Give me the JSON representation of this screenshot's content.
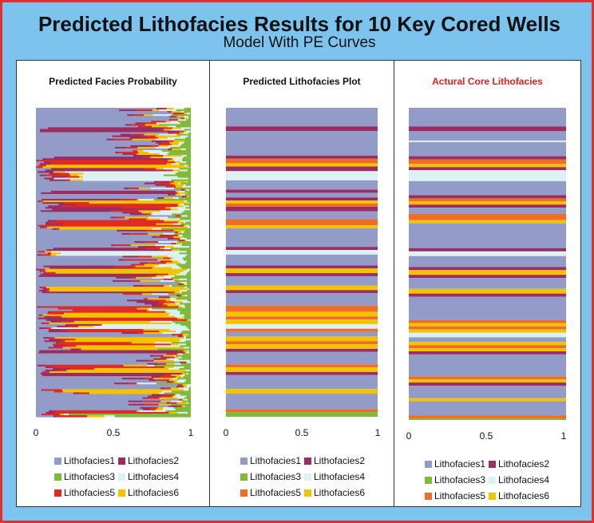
{
  "title": "Predicted Lithofacies Results for 10 Key Cored Wells",
  "subtitle": "Model With PE Curves",
  "colors": {
    "frame_border": "#e03030",
    "background": "#7cc3ee",
    "Lithofacies1": "#939bc8",
    "Lithofacies2": "#9b2d62",
    "Lithofacies3": "#7fbb3b",
    "Lithofacies4": "#dcf1f2",
    "Lithofacies5_panel1": "#e12a24",
    "Lithofacies5": "#ee6e28",
    "Lithofacies6": "#f4c300"
  },
  "chart_data": [
    {
      "type": "bar",
      "orientation": "horizontal-stacked",
      "title": "Predicted Facies Probability",
      "xticks": [
        "0",
        "0.5",
        "1"
      ],
      "xlim": [
        0,
        1
      ],
      "legend": [
        "Lithofacies1",
        "Lithofacies2",
        "Lithofacies3",
        "Lithofacies4",
        "Lithofacies5",
        "Lithofacies6"
      ],
      "legend_position": "bottom",
      "depth_samples": 190,
      "probability_stack_order": [
        "Lithofacies1",
        "Lithofacies2",
        "Lithofacies5",
        "Lithofacies6",
        "Lithofacies4",
        "Lithofacies3"
      ]
    },
    {
      "type": "bar",
      "orientation": "horizontal",
      "title": "Predicted Lithofacies Plot",
      "xticks": [
        "0",
        "0.5",
        "1"
      ],
      "xlim": [
        0,
        1
      ],
      "legend": [
        "Lithofacies1",
        "Lithofacies2",
        "Lithofacies3",
        "Lithofacies4",
        "Lithofacies5",
        "Lithofacies6"
      ],
      "legend_position": "bottom",
      "value": 1,
      "facies_intervals": [
        {
          "start": 0.0,
          "end": 0.06,
          "facies": 1
        },
        {
          "start": 0.06,
          "end": 0.075,
          "facies": 2
        },
        {
          "start": 0.075,
          "end": 0.155,
          "facies": 1
        },
        {
          "start": 0.155,
          "end": 0.165,
          "facies": 2
        },
        {
          "start": 0.165,
          "end": 0.18,
          "facies": 5
        },
        {
          "start": 0.18,
          "end": 0.19,
          "facies": 6
        },
        {
          "start": 0.19,
          "end": 0.205,
          "facies": 2
        },
        {
          "start": 0.205,
          "end": 0.235,
          "facies": 4
        },
        {
          "start": 0.235,
          "end": 0.265,
          "facies": 1
        },
        {
          "start": 0.265,
          "end": 0.275,
          "facies": 2
        },
        {
          "start": 0.275,
          "end": 0.29,
          "facies": 1
        },
        {
          "start": 0.29,
          "end": 0.3,
          "facies": 2
        },
        {
          "start": 0.3,
          "end": 0.31,
          "facies": 6
        },
        {
          "start": 0.31,
          "end": 0.32,
          "facies": 5
        },
        {
          "start": 0.32,
          "end": 0.335,
          "facies": 2
        },
        {
          "start": 0.335,
          "end": 0.36,
          "facies": 1
        },
        {
          "start": 0.36,
          "end": 0.38,
          "facies": 5
        },
        {
          "start": 0.38,
          "end": 0.39,
          "facies": 6
        },
        {
          "start": 0.39,
          "end": 0.45,
          "facies": 1
        },
        {
          "start": 0.45,
          "end": 0.46,
          "facies": 2
        },
        {
          "start": 0.46,
          "end": 0.475,
          "facies": 4
        },
        {
          "start": 0.475,
          "end": 0.51,
          "facies": 1
        },
        {
          "start": 0.51,
          "end": 0.52,
          "facies": 2
        },
        {
          "start": 0.52,
          "end": 0.535,
          "facies": 6
        },
        {
          "start": 0.535,
          "end": 0.545,
          "facies": 2
        },
        {
          "start": 0.545,
          "end": 0.575,
          "facies": 1
        },
        {
          "start": 0.575,
          "end": 0.59,
          "facies": 6
        },
        {
          "start": 0.59,
          "end": 0.6,
          "facies": 2
        },
        {
          "start": 0.6,
          "end": 0.64,
          "facies": 1
        },
        {
          "start": 0.64,
          "end": 0.66,
          "facies": 5
        },
        {
          "start": 0.66,
          "end": 0.675,
          "facies": 6
        },
        {
          "start": 0.675,
          "end": 0.685,
          "facies": 5
        },
        {
          "start": 0.685,
          "end": 0.7,
          "facies": 6
        },
        {
          "start": 0.7,
          "end": 0.715,
          "facies": 4
        },
        {
          "start": 0.715,
          "end": 0.725,
          "facies": 5
        },
        {
          "start": 0.725,
          "end": 0.74,
          "facies": 1
        },
        {
          "start": 0.74,
          "end": 0.755,
          "facies": 6
        },
        {
          "start": 0.755,
          "end": 0.765,
          "facies": 5
        },
        {
          "start": 0.765,
          "end": 0.78,
          "facies": 6
        },
        {
          "start": 0.78,
          "end": 0.79,
          "facies": 2
        },
        {
          "start": 0.79,
          "end": 0.83,
          "facies": 1
        },
        {
          "start": 0.83,
          "end": 0.84,
          "facies": 5
        },
        {
          "start": 0.84,
          "end": 0.855,
          "facies": 6
        },
        {
          "start": 0.855,
          "end": 0.865,
          "facies": 2
        },
        {
          "start": 0.865,
          "end": 0.91,
          "facies": 1
        },
        {
          "start": 0.91,
          "end": 0.925,
          "facies": 6
        },
        {
          "start": 0.925,
          "end": 0.975,
          "facies": 1
        },
        {
          "start": 0.975,
          "end": 0.985,
          "facies": 5
        },
        {
          "start": 0.985,
          "end": 1.0,
          "facies": 3
        }
      ]
    },
    {
      "type": "bar",
      "orientation": "horizontal",
      "title": "Actural Core Lithofacies",
      "xticks": [
        "0",
        "0.5",
        "1"
      ],
      "xlim": [
        0,
        1
      ],
      "legend": [
        "Lithofacies1",
        "Lithofacies2",
        "Lithofacies3",
        "Lithofacies4",
        "Lithofacies5",
        "Lithofacies6"
      ],
      "legend_position": "bottom",
      "value": 1,
      "facies_intervals": [
        {
          "start": 0.0,
          "end": 0.06,
          "facies": 1
        },
        {
          "start": 0.06,
          "end": 0.075,
          "facies": 2
        },
        {
          "start": 0.075,
          "end": 0.105,
          "facies": 1
        },
        {
          "start": 0.105,
          "end": 0.11,
          "facies": 4
        },
        {
          "start": 0.11,
          "end": 0.155,
          "facies": 1
        },
        {
          "start": 0.155,
          "end": 0.165,
          "facies": 2
        },
        {
          "start": 0.165,
          "end": 0.18,
          "facies": 5
        },
        {
          "start": 0.18,
          "end": 0.19,
          "facies": 6
        },
        {
          "start": 0.19,
          "end": 0.2,
          "facies": 2
        },
        {
          "start": 0.2,
          "end": 0.235,
          "facies": 4
        },
        {
          "start": 0.235,
          "end": 0.28,
          "facies": 1
        },
        {
          "start": 0.28,
          "end": 0.29,
          "facies": 2
        },
        {
          "start": 0.29,
          "end": 0.3,
          "facies": 5
        },
        {
          "start": 0.3,
          "end": 0.31,
          "facies": 6
        },
        {
          "start": 0.31,
          "end": 0.32,
          "facies": 2
        },
        {
          "start": 0.32,
          "end": 0.34,
          "facies": 1
        },
        {
          "start": 0.34,
          "end": 0.36,
          "facies": 5
        },
        {
          "start": 0.36,
          "end": 0.37,
          "facies": 6
        },
        {
          "start": 0.37,
          "end": 0.45,
          "facies": 1
        },
        {
          "start": 0.45,
          "end": 0.46,
          "facies": 2
        },
        {
          "start": 0.46,
          "end": 0.475,
          "facies": 4
        },
        {
          "start": 0.475,
          "end": 0.51,
          "facies": 1
        },
        {
          "start": 0.51,
          "end": 0.52,
          "facies": 2
        },
        {
          "start": 0.52,
          "end": 0.535,
          "facies": 6
        },
        {
          "start": 0.535,
          "end": 0.545,
          "facies": 2
        },
        {
          "start": 0.545,
          "end": 0.58,
          "facies": 1
        },
        {
          "start": 0.58,
          "end": 0.595,
          "facies": 6
        },
        {
          "start": 0.595,
          "end": 0.605,
          "facies": 2
        },
        {
          "start": 0.605,
          "end": 0.68,
          "facies": 1
        },
        {
          "start": 0.68,
          "end": 0.69,
          "facies": 5
        },
        {
          "start": 0.69,
          "end": 0.7,
          "facies": 6
        },
        {
          "start": 0.7,
          "end": 0.71,
          "facies": 5
        },
        {
          "start": 0.71,
          "end": 0.72,
          "facies": 6
        },
        {
          "start": 0.72,
          "end": 0.735,
          "facies": 4
        },
        {
          "start": 0.735,
          "end": 0.75,
          "facies": 1
        },
        {
          "start": 0.75,
          "end": 0.76,
          "facies": 6
        },
        {
          "start": 0.76,
          "end": 0.77,
          "facies": 5
        },
        {
          "start": 0.77,
          "end": 0.78,
          "facies": 6
        },
        {
          "start": 0.78,
          "end": 0.79,
          "facies": 2
        },
        {
          "start": 0.79,
          "end": 0.86,
          "facies": 1
        },
        {
          "start": 0.86,
          "end": 0.87,
          "facies": 5
        },
        {
          "start": 0.87,
          "end": 0.88,
          "facies": 6
        },
        {
          "start": 0.88,
          "end": 0.89,
          "facies": 2
        },
        {
          "start": 0.89,
          "end": 0.93,
          "facies": 1
        },
        {
          "start": 0.93,
          "end": 0.94,
          "facies": 6
        },
        {
          "start": 0.94,
          "end": 0.985,
          "facies": 1
        },
        {
          "start": 0.985,
          "end": 0.995,
          "facies": 5
        },
        {
          "start": 0.995,
          "end": 1.0,
          "facies": 3
        }
      ]
    }
  ]
}
